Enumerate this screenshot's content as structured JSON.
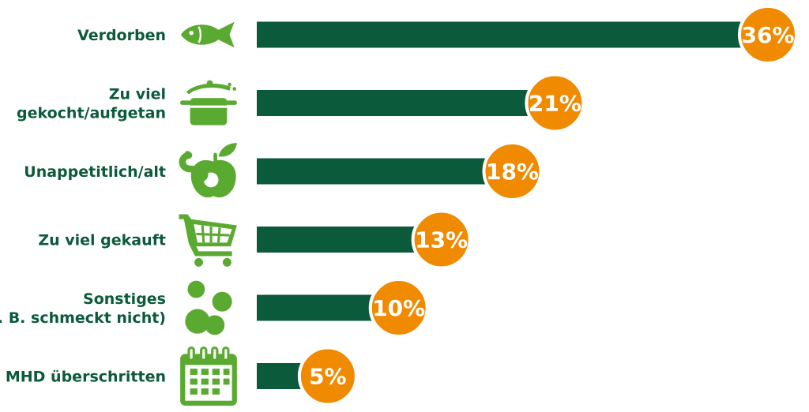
{
  "chart_data": {
    "type": "bar",
    "orientation": "horizontal",
    "categories": [
      [
        "Verdorben"
      ],
      [
        "Zu viel",
        "gekocht/aufgetan"
      ],
      [
        "Unappetitlich/alt"
      ],
      [
        "Zu viel gekauft"
      ],
      [
        "Sonstiges",
        "(z. B. schmeckt nicht)"
      ],
      [
        "MHD überschritten"
      ]
    ],
    "values": [
      36,
      21,
      18,
      13,
      10,
      5
    ],
    "value_labels": [
      "36%",
      "21%",
      "18%",
      "13%",
      "10%",
      "5%"
    ],
    "icons": [
      "fish-icon",
      "cooking-pot-icon",
      "apple-worm-icon",
      "shopping-cart-icon",
      "food-scraps-icon",
      "calendar-icon"
    ],
    "title": "",
    "xlabel": "",
    "ylabel": "",
    "xlim": [
      0,
      36
    ],
    "grid": false,
    "legend": "none",
    "colors": {
      "bar": "#0b5a3b",
      "badge": "#f08a00",
      "icon": "#5aaa32",
      "label": "#0b5a3b",
      "badge_text": "#ffffff"
    }
  }
}
